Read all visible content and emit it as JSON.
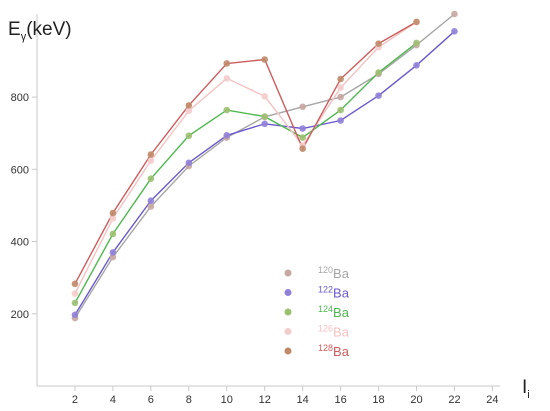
{
  "chart_data": {
    "type": "line",
    "ylabel_main": "E",
    "ylabel_sub": "γ",
    "ylabel_unit": "(keV)",
    "xlabel_main": "I",
    "xlabel_sub": "i",
    "x_ticks": [
      2,
      4,
      6,
      8,
      10,
      12,
      14,
      16,
      18,
      20,
      22,
      24
    ],
    "y_ticks": [
      200,
      400,
      600,
      800
    ],
    "xlim": [
      0,
      24.4
    ],
    "ylim": [
      0,
      1030
    ],
    "grid": false,
    "legend_position": "center-bottom",
    "series": [
      {
        "mass": "120",
        "element": "Ba",
        "color": "#a6a6a6",
        "marker_color": "#c7a7a0",
        "x": [
          2,
          4,
          6,
          8,
          10,
          12,
          14,
          16,
          18,
          20,
          22
        ],
        "y": [
          188,
          357,
          497,
          609,
          688,
          745,
          773,
          800,
          864,
          944,
          1030
        ]
      },
      {
        "mass": "122",
        "element": "Ba",
        "color": "#6a5acd",
        "marker_color": "#9080d8",
        "x": [
          2,
          4,
          6,
          8,
          10,
          12,
          14,
          16,
          18,
          20,
          22
        ],
        "y": [
          197,
          370,
          513,
          618,
          694,
          726,
          713,
          735,
          804,
          888,
          982
        ]
      },
      {
        "mass": "124",
        "element": "Ba",
        "color": "#4fb84f",
        "marker_color": "#9cbf70",
        "x": [
          2,
          4,
          6,
          8,
          10,
          12,
          14,
          16,
          18,
          20
        ],
        "y": [
          230,
          421,
          574,
          693,
          764,
          746,
          688,
          764,
          868,
          950
        ]
      },
      {
        "mass": "126",
        "element": "Ba",
        "color": "#f4c2c2",
        "marker_color": "#f4cccc",
        "x": [
          2,
          4,
          6,
          8,
          10,
          12,
          14,
          16,
          18,
          20
        ],
        "y": [
          256,
          464,
          624,
          762,
          852,
          802,
          666,
          826,
          938,
          1008
        ]
      },
      {
        "mass": "128",
        "element": "Ba",
        "color": "#cd5c5c",
        "marker_color": "#c08a68",
        "x": [
          2,
          4,
          6,
          8,
          10,
          12,
          14,
          16,
          18,
          20
        ],
        "y": [
          283,
          479,
          641,
          777,
          893,
          904,
          657,
          850,
          948,
          1008
        ]
      }
    ]
  }
}
